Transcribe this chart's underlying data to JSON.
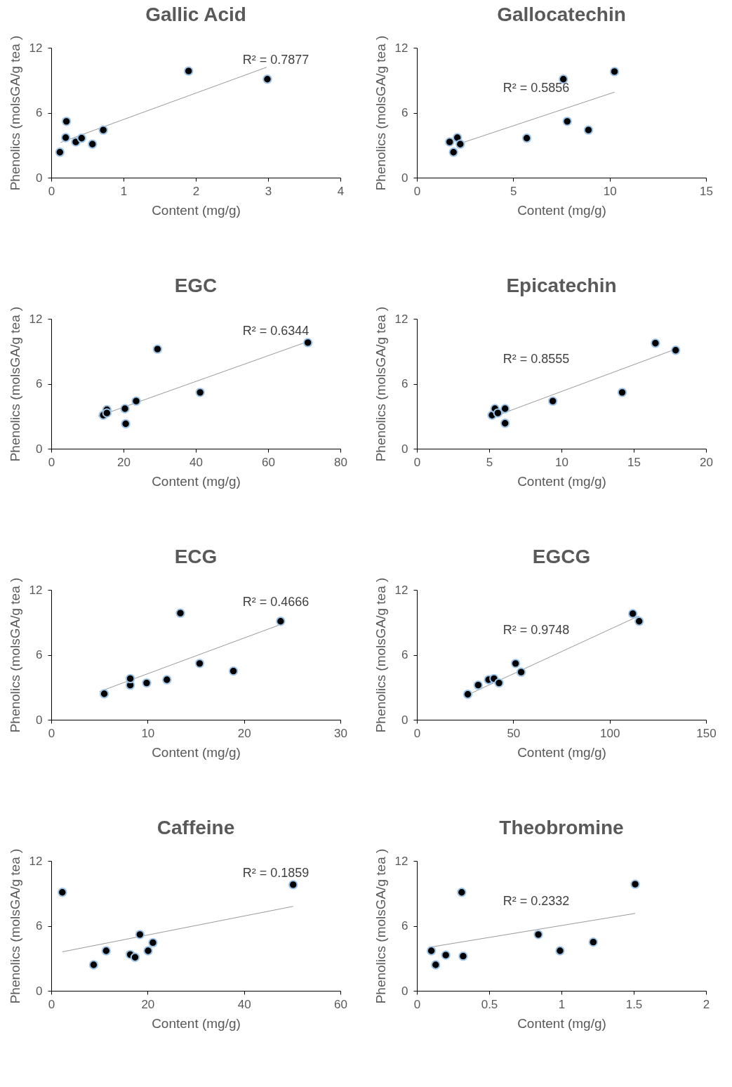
{
  "chart_data": [
    {
      "type": "scatter",
      "title": "Gallic Acid",
      "xlabel": "Content (mg/g)",
      "ylabel": "Phenolics (molsGA/g tea )",
      "xlim": [
        0,
        4
      ],
      "xticks": [
        0,
        1,
        2,
        3,
        4
      ],
      "ylim": [
        0,
        12
      ],
      "yticks": [
        0,
        6,
        12
      ],
      "annotations": [
        "R² = 0.7877"
      ],
      "series": [
        {
          "color": "#000000",
          "marker": "circle",
          "x": [
            0.12,
            0.2,
            0.21,
            0.34,
            0.42,
            0.57,
            0.72,
            1.9,
            2.99
          ],
          "values": [
            2.35,
            3.7,
            5.2,
            3.3,
            3.65,
            3.1,
            4.4,
            9.85,
            9.1
          ]
        },
        {
          "type": "line",
          "marker": "none",
          "color": "#7f7f7f",
          "x": [
            0.13,
            2.98
          ],
          "values": [
            3.25,
            10.2
          ]
        }
      ]
    },
    {
      "type": "scatter",
      "title": "Gallocatechin",
      "xlabel": "Content (mg/g)",
      "ylabel": "Phenolics (molsGA/g tea )",
      "xlim": [
        0,
        15
      ],
      "xticks": [
        0,
        5,
        10,
        15
      ],
      "ylim": [
        0,
        12
      ],
      "yticks": [
        0,
        6,
        12
      ],
      "annotations": [
        "R² = 0.5856"
      ],
      "series": [
        {
          "color": "#000000",
          "marker": "circle",
          "x": [
            1.7,
            2.1,
            2.25,
            1.9,
            5.7,
            7.6,
            7.8,
            8.9,
            10.25
          ],
          "values": [
            3.3,
            3.7,
            3.1,
            2.35,
            3.65,
            9.1,
            5.2,
            4.4,
            9.8
          ]
        },
        {
          "type": "line",
          "marker": "none",
          "color": "#7f7f7f",
          "x": [
            2.4,
            10.25
          ],
          "values": [
            3.25,
            7.9
          ]
        }
      ]
    },
    {
      "type": "scatter",
      "title": "EGC",
      "xlabel": "Content (mg/g)",
      "ylabel": "Phenolics (molsGA/g tea )",
      "xlim": [
        0,
        80
      ],
      "xticks": [
        0,
        20,
        40,
        60,
        80
      ],
      "ylim": [
        0,
        12
      ],
      "yticks": [
        0,
        6,
        12
      ],
      "annotations": [
        "R² = 0.6344"
      ],
      "series": [
        {
          "color": "#000000",
          "marker": "circle",
          "x": [
            14.4,
            15.4,
            15.4,
            20.4,
            20.6,
            23.5,
            29.4,
            41.2,
            71
          ],
          "values": [
            3.1,
            3.6,
            3.3,
            3.7,
            2.3,
            4.4,
            9.2,
            5.2,
            9.8
          ]
        },
        {
          "type": "line",
          "marker": "none",
          "color": "#7f7f7f",
          "x": [
            13,
            71
          ],
          "values": [
            3.0,
            9.9
          ]
        }
      ]
    },
    {
      "type": "scatter",
      "title": "Epicatechin",
      "xlabel": "Content (mg/g)",
      "ylabel": "Phenolics (molsGA/g tea )",
      "xlim": [
        0,
        20
      ],
      "xticks": [
        0,
        5,
        10,
        15,
        20
      ],
      "ylim": [
        0,
        12
      ],
      "yticks": [
        0,
        6,
        12
      ],
      "annotations": [
        "R² = 0.8555"
      ],
      "series": [
        {
          "color": "#000000",
          "marker": "circle",
          "x": [
            5.2,
            5.4,
            6.1,
            6.1,
            5.6,
            9.4,
            14.2,
            16.5,
            17.9
          ],
          "values": [
            3.1,
            3.7,
            3.7,
            2.35,
            3.3,
            4.4,
            5.2,
            9.75,
            9.1
          ]
        },
        {
          "type": "line",
          "marker": "none",
          "color": "#7f7f7f",
          "x": [
            5.2,
            17.9
          ],
          "values": [
            2.9,
            9.2
          ]
        }
      ]
    },
    {
      "type": "scatter",
      "title": "ECG",
      "xlabel": "Content (mg/g)",
      "ylabel": "Phenolics (molsGA/g tea )",
      "xlim": [
        0,
        30
      ],
      "xticks": [
        0,
        10,
        20,
        30
      ],
      "ylim": [
        0,
        12
      ],
      "yticks": [
        0,
        6,
        12
      ],
      "annotations": [
        "R² = 0.4666"
      ],
      "series": [
        {
          "color": "#000000",
          "marker": "circle",
          "x": [
            5.5,
            8.2,
            8.2,
            9.9,
            12,
            13.4,
            15.4,
            18.9,
            23.8
          ],
          "values": [
            2.4,
            3.2,
            3.8,
            3.4,
            3.7,
            9.85,
            5.2,
            4.5,
            9.1
          ]
        },
        {
          "type": "line",
          "marker": "none",
          "color": "#7f7f7f",
          "x": [
            5,
            23.8
          ],
          "values": [
            2.6,
            8.8
          ]
        }
      ]
    },
    {
      "type": "scatter",
      "title": "EGCG",
      "xlabel": "Content (mg/g)",
      "ylabel": "Phenolics (molsGA/g tea )",
      "xlim": [
        0,
        150
      ],
      "xticks": [
        0,
        50,
        100,
        150
      ],
      "ylim": [
        0,
        12
      ],
      "yticks": [
        0,
        6,
        12
      ],
      "annotations": [
        "R² = 0.9748"
      ],
      "series": [
        {
          "color": "#000000",
          "marker": "circle",
          "x": [
            26.4,
            31.8,
            37.2,
            40,
            42.6,
            51.2,
            54.1,
            112,
            115.3
          ],
          "values": [
            2.35,
            3.2,
            3.7,
            3.8,
            3.4,
            5.2,
            4.4,
            9.8,
            9.1
          ]
        },
        {
          "type": "line",
          "marker": "none",
          "color": "#7f7f7f",
          "x": [
            26.4,
            115.3
          ],
          "values": [
            2.3,
            9.6
          ]
        }
      ]
    },
    {
      "type": "scatter",
      "title": "Caffeine",
      "xlabel": "Content (mg/g)",
      "ylabel": "Phenolics (molsGA/g tea )",
      "xlim": [
        0,
        60
      ],
      "xticks": [
        0,
        20,
        40,
        60
      ],
      "ylim": [
        0,
        12
      ],
      "yticks": [
        0,
        6,
        12
      ],
      "annotations": [
        "R² = 0.1859"
      ],
      "series": [
        {
          "color": "#000000",
          "marker": "circle",
          "x": [
            2.3,
            8.8,
            11.4,
            16.4,
            17.4,
            18.4,
            20.1,
            21.1,
            50.2
          ],
          "values": [
            9.1,
            2.4,
            3.7,
            3.35,
            3.1,
            5.2,
            3.7,
            4.45,
            9.8
          ]
        },
        {
          "type": "line",
          "marker": "none",
          "color": "#7f7f7f",
          "x": [
            2.3,
            50.2
          ],
          "values": [
            3.6,
            7.8
          ]
        }
      ]
    },
    {
      "type": "scatter",
      "title": "Theobromine",
      "xlabel": "Content (mg/g)",
      "ylabel": "Phenolics (molsGA/g tea )",
      "xlim": [
        0,
        2
      ],
      "xticks": [
        0,
        0.5,
        1,
        1.5,
        2
      ],
      "ylim": [
        0,
        12
      ],
      "yticks": [
        0,
        6,
        12
      ],
      "annotations": [
        "R² = 0.2332"
      ],
      "series": [
        {
          "color": "#000000",
          "marker": "circle",
          "x": [
            0.1,
            0.13,
            0.2,
            0.31,
            0.32,
            0.84,
            0.99,
            1.22,
            1.51
          ],
          "values": [
            3.7,
            2.4,
            3.3,
            9.1,
            3.2,
            5.2,
            3.7,
            4.5,
            9.85
          ]
        },
        {
          "type": "line",
          "marker": "none",
          "color": "#7f7f7f",
          "x": [
            0.1,
            1.51
          ],
          "values": [
            4.05,
            7.15
          ]
        }
      ]
    }
  ]
}
